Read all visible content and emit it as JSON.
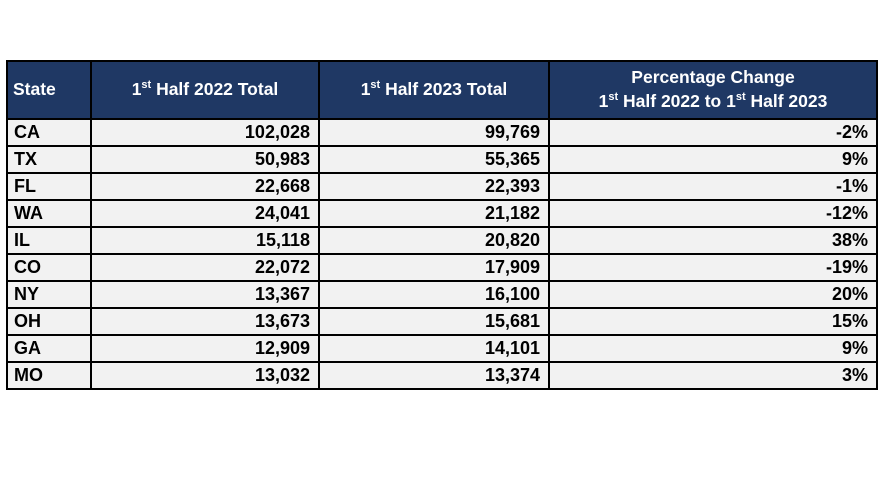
{
  "colors": {
    "header_bg": "#1f3864",
    "header_text": "#ffffff",
    "row_bg": "#f2f2f2",
    "border": "#000000",
    "cell_text": "#000000",
    "page_bg": "#ffffff"
  },
  "chart_data": {
    "type": "table",
    "title": "",
    "columns": [
      "State",
      "1st Half 2022 Total",
      "1st Half 2023 Total",
      "Percentage Change 1st Half 2022 to 1st Half 2023"
    ],
    "rows": [
      {
        "state": "CA",
        "total_2022": 102028,
        "total_2023": 99769,
        "pct_change": "-2%"
      },
      {
        "state": "TX",
        "total_2022": 50983,
        "total_2023": 55365,
        "pct_change": "9%"
      },
      {
        "state": "FL",
        "total_2022": 22668,
        "total_2023": 22393,
        "pct_change": "-1%"
      },
      {
        "state": "WA",
        "total_2022": 24041,
        "total_2023": 21182,
        "pct_change": "-12%"
      },
      {
        "state": "IL",
        "total_2022": 15118,
        "total_2023": 20820,
        "pct_change": "38%"
      },
      {
        "state": "CO",
        "total_2022": 22072,
        "total_2023": 17909,
        "pct_change": "-19%"
      },
      {
        "state": "NY",
        "total_2022": 13367,
        "total_2023": 16100,
        "pct_change": "20%"
      },
      {
        "state": "OH",
        "total_2022": 13673,
        "total_2023": 15681,
        "pct_change": "15%"
      },
      {
        "state": "GA",
        "total_2022": 12909,
        "total_2023": 14101,
        "pct_change": "9%"
      },
      {
        "state": "MO",
        "total_2022": 13032,
        "total_2023": 13374,
        "pct_change": "3%"
      }
    ]
  },
  "table": {
    "header": {
      "state": "State",
      "h2022": {
        "n1": "1",
        "s1": "st",
        "t1": " Half 2022 Total"
      },
      "h2023": {
        "n1": "1",
        "s1": "st",
        "t1": " Half 2023 Total"
      },
      "pct_line1": "Percentage Change",
      "pct_line2": {
        "n1": "1",
        "s1": "st",
        "t1": " Half 2022 to 1",
        "s2": "st",
        "t2": " Half 2023"
      }
    },
    "rows": [
      {
        "state": "CA",
        "y2022": "102,028",
        "y2023": "99,769",
        "pct": "-2%"
      },
      {
        "state": "TX",
        "y2022": "50,983",
        "y2023": "55,365",
        "pct": "9%"
      },
      {
        "state": "FL",
        "y2022": "22,668",
        "y2023": "22,393",
        "pct": "-1%"
      },
      {
        "state": "WA",
        "y2022": "24,041",
        "y2023": "21,182",
        "pct": "-12%"
      },
      {
        "state": "IL",
        "y2022": "15,118",
        "y2023": "20,820",
        "pct": "38%"
      },
      {
        "state": "CO",
        "y2022": "22,072",
        "y2023": "17,909",
        "pct": "-19%"
      },
      {
        "state": "NY",
        "y2022": "13,367",
        "y2023": "16,100",
        "pct": "20%"
      },
      {
        "state": "OH",
        "y2022": "13,673",
        "y2023": "15,681",
        "pct": "15%"
      },
      {
        "state": "GA",
        "y2022": "12,909",
        "y2023": "14,101",
        "pct": "9%"
      },
      {
        "state": "MO",
        "y2022": "13,032",
        "y2023": "13,374",
        "pct": "3%"
      }
    ]
  }
}
